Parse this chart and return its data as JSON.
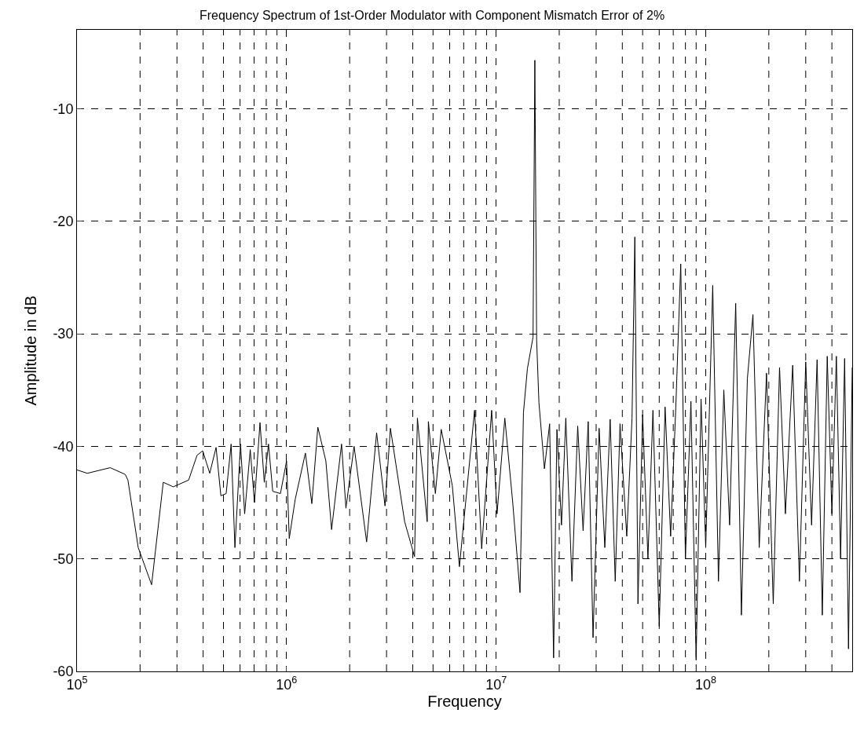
{
  "chart_data": {
    "type": "line",
    "title": "Frequency Spectrum of 1st-Order Modulator with Component Mismatch Error of 2%",
    "xlabel": "Frequency",
    "ylabel": "Amplitude in dB",
    "log": "x",
    "grid": true,
    "marker": "none",
    "line_style": "solid",
    "xlim": [
      100000,
      500000000
    ],
    "xticks": [
      {
        "value": 100000,
        "label": "10$^{5}$"
      },
      {
        "value": 1000000,
        "label": "10$^{6}$"
      },
      {
        "value": 10000000,
        "label": "10$^{7}$"
      },
      {
        "value": 100000000,
        "label": "10$^{8}$"
      }
    ],
    "ylim": [
      -60,
      -3
    ],
    "yticks": [
      -60,
      -50,
      -40,
      -30,
      -20,
      -10
    ],
    "series": [
      {
        "color": "#000000",
        "x": [
          100000,
          112000,
          144000,
          170000,
          175000,
          196000,
          227000,
          258000,
          288000,
          341000,
          374000,
          398000,
          430000,
          461000,
          486000,
          515000,
          544000,
          567000,
          603000,
          631000,
          671000,
          703000,
          747000,
          783000,
          820000,
          859000,
          935000,
          1000000,
          1030000,
          1100000,
          1230000,
          1320000,
          1410000,
          1540000,
          1640000,
          1830000,
          1920000,
          2100000,
          2410000,
          2690000,
          2950000,
          3130000,
          3660000,
          4080000,
          4210000,
          4690000,
          4750000,
          5130000,
          5470000,
          6180000,
          6680000,
          7890000,
          8530000,
          9520000,
          10100000,
          11000000,
          12000000,
          13000000,
          13500000,
          14100000,
          15000000,
          15300000,
          15600000,
          16000000,
          17000000,
          18000000,
          18800000,
          19500000,
          20500000,
          21500000,
          23000000,
          24500000,
          26000000,
          27500000,
          29000000,
          31000000,
          33000000,
          35000000,
          37000000,
          39000000,
          42000000,
          44500000,
          45900000,
          47500000,
          50000000,
          53000000,
          56000000,
          60000000,
          64000000,
          68000000,
          72000000,
          76000000,
          80000000,
          85000000,
          90000000,
          95000000,
          100000000,
          108000000,
          115000000,
          122000000,
          130000000,
          139000000,
          148000000,
          158000000,
          168000000,
          180000000,
          195000000,
          210000000,
          225000000,
          240000000,
          260000000,
          280000000,
          300000000,
          320000000,
          340000000,
          360000000,
          380000000,
          400000000,
          420000000,
          440000000,
          460000000,
          480000000,
          500000000
        ],
        "values": [
          -42.1,
          -42.4,
          -41.9,
          -42.5,
          -43.0,
          -49.0,
          -52.3,
          -43.2,
          -43.6,
          -43.0,
          -40.8,
          -40.4,
          -42.4,
          -40.1,
          -44.4,
          -44.2,
          -39.8,
          -49.0,
          -39.8,
          -46.0,
          -40.3,
          -45.0,
          -37.9,
          -43.2,
          -39.8,
          -44.0,
          -44.2,
          -41.3,
          -48.2,
          -44.7,
          -40.6,
          -45.1,
          -38.3,
          -41.3,
          -47.4,
          -39.8,
          -45.5,
          -40.0,
          -48.5,
          -38.8,
          -45.3,
          -38.4,
          -46.7,
          -49.8,
          -37.5,
          -46.7,
          -37.8,
          -44.2,
          -38.5,
          -43.5,
          -50.7,
          -36.8,
          -49.1,
          -36.8,
          -46.0,
          -37.5,
          -45.0,
          -53.0,
          -37.0,
          -33.1,
          -30.3,
          -5.7,
          -30.5,
          -36.1,
          -42.0,
          -38.0,
          -58.8,
          -38.5,
          -47.0,
          -37.5,
          -52.0,
          -38.2,
          -47.5,
          -37.8,
          -57.0,
          -38.4,
          -49.0,
          -37.6,
          -52.0,
          -38.0,
          -48.0,
          -37.5,
          -21.4,
          -54.0,
          -37.2,
          -50.0,
          -36.8,
          -56.0,
          -36.5,
          -48.0,
          -36.5,
          -23.8,
          -50.0,
          -36.0,
          -59.0,
          -35.8,
          -49.0,
          -25.7,
          -52.0,
          -35.0,
          -47.0,
          -27.3,
          -55.0,
          -34.0,
          -28.3,
          -49.0,
          -33.5,
          -54.0,
          -33.0,
          -46.0,
          -32.8,
          -52.0,
          -32.5,
          -47.0,
          -32.3,
          -55.0,
          -32.0,
          -46.0,
          -32.0,
          -50.0,
          -32.2,
          -58.0,
          -33.0
        ]
      }
    ]
  }
}
